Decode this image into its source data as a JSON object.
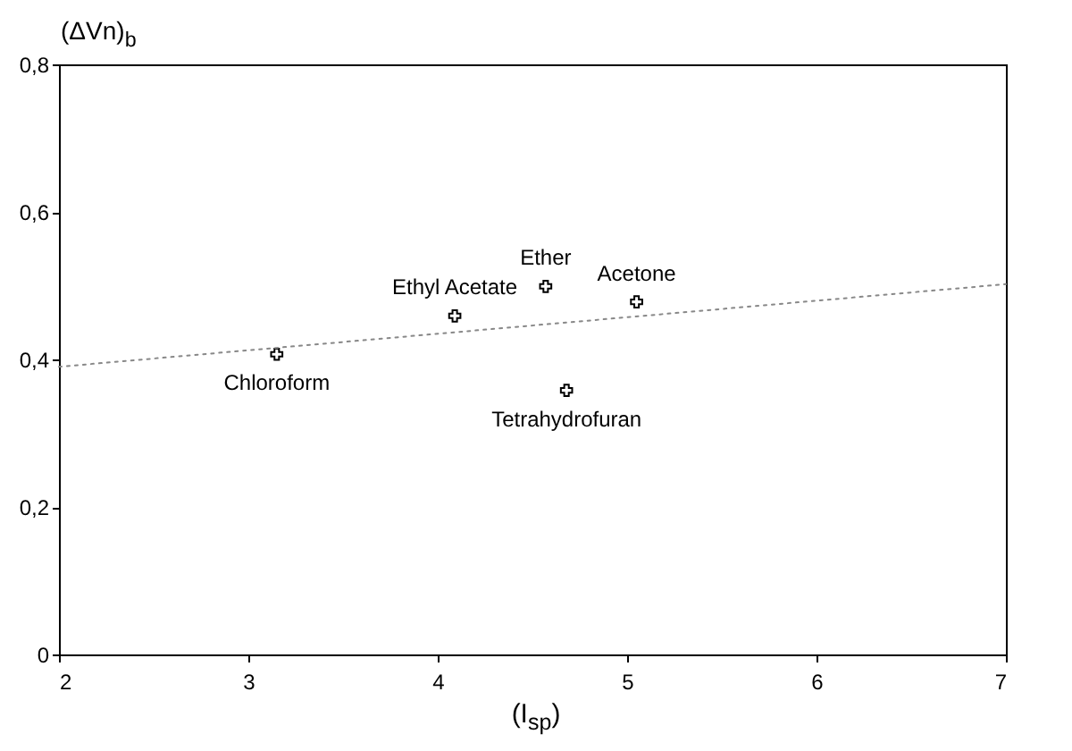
{
  "chart_data": {
    "type": "scatter",
    "xlabel": "(I$_{sp}$)",
    "ylabel": "(ΔVn)$_{b}$",
    "xlim": [
      2,
      7
    ],
    "xticks": [
      2,
      3,
      4,
      5,
      6,
      7
    ],
    "ylim": [
      0,
      0.8
    ],
    "yticks": [
      {
        "value": 0,
        "label": "0"
      },
      {
        "value": 0.2,
        "label": "0,2"
      },
      {
        "value": 0.4,
        "label": "0,4"
      },
      {
        "value": 0.6,
        "label": "0,6"
      },
      {
        "value": 0.8,
        "label": "0,8"
      }
    ],
    "grid": false,
    "series": [
      {
        "color": "#000000",
        "marker": "cross",
        "x": [
          3.15,
          4.09,
          4.57,
          5.05,
          4.68
        ],
        "values": [
          0.407,
          0.459,
          0.499,
          0.478,
          0.358
        ]
      },
      {
        "type": "line",
        "color": "#888888",
        "line_style": "dotted",
        "x": [
          2,
          7
        ],
        "values": [
          0.39,
          0.502
        ]
      }
    ],
    "annotations": [
      {
        "text": "Chloroform",
        "x": 3.15,
        "y": 0.407
      },
      {
        "text": "Ethyl Acetate",
        "x": 4.09,
        "y": 0.459
      },
      {
        "text": "Ether",
        "x": 4.57,
        "y": 0.499
      },
      {
        "text": "Acetone",
        "x": 5.05,
        "y": 0.478
      },
      {
        "text": "Tetrahydrofuran",
        "x": 4.68,
        "y": 0.358
      }
    ]
  }
}
